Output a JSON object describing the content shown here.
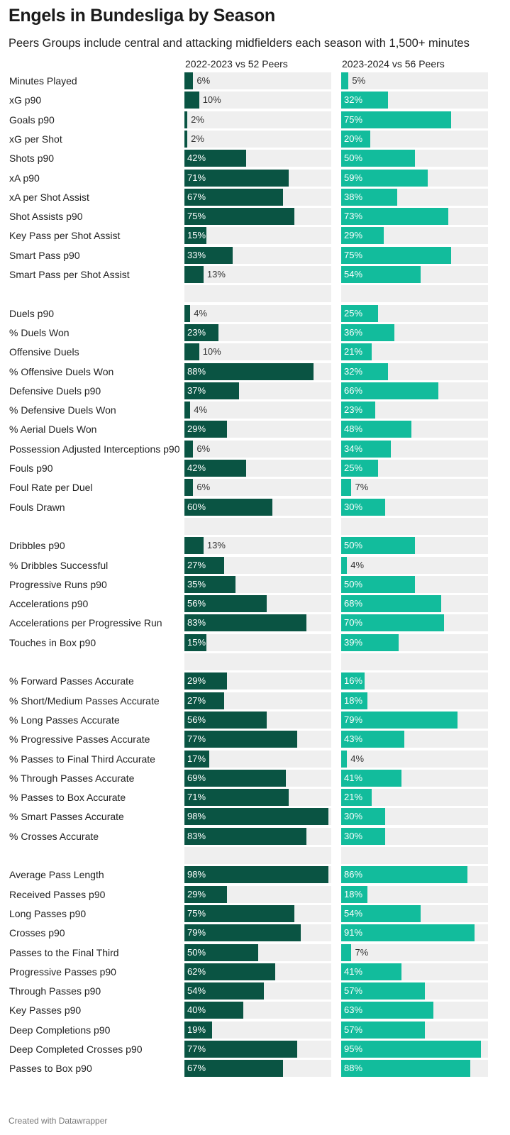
{
  "title": "Engels in Bundesliga by Season",
  "subtitle": "Peers Groups include central and attacking midfielders each season with 1,500+ minutes",
  "footer": "Created with Datawrapper",
  "colors": {
    "season1": "#0a5443",
    "season2": "#12bc9c",
    "track": "#efefef"
  },
  "chart_data": {
    "type": "bar",
    "orientation": "horizontal",
    "unit": "%",
    "xlim": [
      0,
      100
    ],
    "series": [
      {
        "name": "2022-2023 vs 52 Peers",
        "color": "#0a5443"
      },
      {
        "name": "2023-2024 vs 56 Peers",
        "color": "#12bc9c"
      }
    ],
    "groups": [
      {
        "rows": [
          {
            "label": "Minutes Played",
            "values": [
              6,
              5
            ]
          },
          {
            "label": "xG p90",
            "values": [
              10,
              32
            ]
          },
          {
            "label": "Goals p90",
            "values": [
              2,
              75
            ]
          },
          {
            "label": "xG per Shot",
            "values": [
              2,
              20
            ]
          },
          {
            "label": "Shots p90",
            "values": [
              42,
              50
            ]
          },
          {
            "label": "xA p90",
            "values": [
              71,
              59
            ]
          },
          {
            "label": "xA per Shot Assist",
            "values": [
              67,
              38
            ]
          },
          {
            "label": "Shot Assists p90",
            "values": [
              75,
              73
            ]
          },
          {
            "label": "Key Pass per Shot Assist",
            "values": [
              15,
              29
            ]
          },
          {
            "label": "Smart Pass p90",
            "values": [
              33,
              75
            ]
          },
          {
            "label": "Smart Pass per Shot Assist",
            "values": [
              13,
              54
            ]
          }
        ]
      },
      {
        "rows": [
          {
            "label": "Duels p90",
            "values": [
              4,
              25
            ]
          },
          {
            "label": "% Duels Won",
            "values": [
              23,
              36
            ]
          },
          {
            "label": "Offensive Duels",
            "values": [
              10,
              21
            ]
          },
          {
            "label": "% Offensive Duels Won",
            "values": [
              88,
              32
            ]
          },
          {
            "label": "Defensive Duels p90",
            "values": [
              37,
              66
            ]
          },
          {
            "label": "% Defensive Duels Won",
            "values": [
              4,
              23
            ]
          },
          {
            "label": "% Aerial Duels Won",
            "values": [
              29,
              48
            ]
          },
          {
            "label": "Possession Adjusted Interceptions p90",
            "values": [
              6,
              34
            ]
          },
          {
            "label": "Fouls p90",
            "values": [
              42,
              25
            ]
          },
          {
            "label": "Foul Rate per Duel",
            "values": [
              6,
              7
            ]
          },
          {
            "label": "Fouls Drawn",
            "values": [
              60,
              30
            ]
          }
        ]
      },
      {
        "rows": [
          {
            "label": "Dribbles p90",
            "values": [
              13,
              50
            ]
          },
          {
            "label": "% Dribbles Successful",
            "values": [
              27,
              4
            ]
          },
          {
            "label": "Progressive Runs p90",
            "values": [
              35,
              50
            ]
          },
          {
            "label": "Accelerations p90",
            "values": [
              56,
              68
            ]
          },
          {
            "label": "Accelerations per Progressive Run",
            "values": [
              83,
              70
            ]
          },
          {
            "label": "Touches in Box p90",
            "values": [
              15,
              39
            ]
          }
        ]
      },
      {
        "rows": [
          {
            "label": "% Forward Passes Accurate",
            "values": [
              29,
              16
            ]
          },
          {
            "label": "% Short/Medium Passes Accurate",
            "values": [
              27,
              18
            ]
          },
          {
            "label": "% Long Passes Accurate",
            "values": [
              56,
              79
            ]
          },
          {
            "label": "% Progressive Passes Accurate",
            "values": [
              77,
              43
            ]
          },
          {
            "label": "% Passes to Final Third Accurate",
            "values": [
              17,
              4
            ]
          },
          {
            "label": "% Through Passes Accurate",
            "values": [
              69,
              41
            ]
          },
          {
            "label": "% Passes to Box Accurate",
            "values": [
              71,
              21
            ]
          },
          {
            "label": "% Smart Passes Accurate",
            "values": [
              98,
              30
            ]
          },
          {
            "label": "% Crosses Accurate",
            "values": [
              83,
              30
            ]
          }
        ]
      },
      {
        "rows": [
          {
            "label": "Average Pass Length",
            "values": [
              98,
              86
            ]
          },
          {
            "label": "Received Passes p90",
            "values": [
              29,
              18
            ]
          },
          {
            "label": "Long Passes p90",
            "values": [
              75,
              54
            ]
          },
          {
            "label": "Crosses p90",
            "values": [
              79,
              91
            ]
          },
          {
            "label": "Passes to the Final Third",
            "values": [
              50,
              7
            ]
          },
          {
            "label": "Progressive Passes p90",
            "values": [
              62,
              41
            ]
          },
          {
            "label": "Through Passes p90",
            "values": [
              54,
              57
            ]
          },
          {
            "label": "Key Passes p90",
            "values": [
              40,
              63
            ]
          },
          {
            "label": "Deep Completions p90",
            "values": [
              19,
              57
            ]
          },
          {
            "label": "Deep Completed Crosses p90",
            "values": [
              77,
              95
            ]
          },
          {
            "label": "Passes to Box p90",
            "values": [
              67,
              88
            ]
          }
        ]
      }
    ]
  }
}
